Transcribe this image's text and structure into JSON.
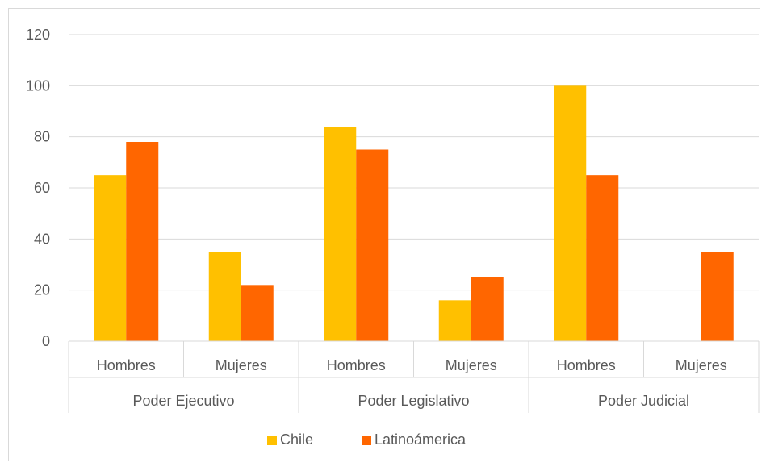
{
  "chart_data": {
    "type": "bar",
    "groups": [
      {
        "label": "Poder Ejecutivo",
        "categories": [
          "Hombres",
          "Mujeres"
        ]
      },
      {
        "label": "Poder Legislativo",
        "categories": [
          "Hombres",
          "Mujeres"
        ]
      },
      {
        "label": "Poder Judicial",
        "categories": [
          "Hombres",
          "Mujeres"
        ]
      }
    ],
    "categories": [
      "Hombres",
      "Mujeres",
      "Hombres",
      "Mujeres",
      "Hombres",
      "Mujeres"
    ],
    "series": [
      {
        "name": "Chile",
        "color": "#FFC000",
        "values": [
          65,
          35,
          84,
          16,
          100,
          0
        ]
      },
      {
        "name": "Latinoámerica",
        "color": "#FF6600",
        "values": [
          78,
          22,
          75,
          25,
          65,
          35
        ]
      }
    ],
    "ylim": [
      0,
      120
    ],
    "yticks": [
      "0",
      "20",
      "40",
      "60",
      "80",
      "100",
      "120"
    ],
    "grid": true,
    "legend": "bottom",
    "title": "",
    "xlabel": "",
    "ylabel": ""
  }
}
